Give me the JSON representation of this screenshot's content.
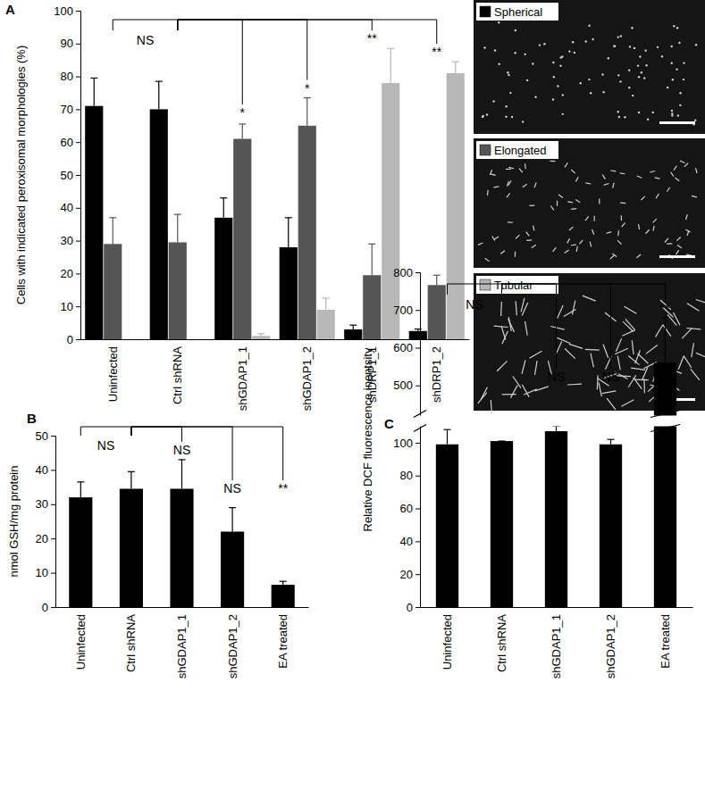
{
  "chart_data": [
    {
      "type": "bar",
      "panel_label": "A",
      "y_label": "Cells with indicated peroxisomal morphologies (%)",
      "categories": [
        "Uninfected",
        "Ctrl shRNA",
        "shGDAP1_1",
        "shGDAP1_2",
        "shDRP1_1",
        "shDRP1_2"
      ],
      "series": [
        {
          "name": "Spherical",
          "color": "#000000",
          "values": [
            71,
            70,
            37,
            28,
            3,
            2.5
          ],
          "errors": [
            8.5,
            8.5,
            6,
            9,
            1.3,
            0.6
          ]
        },
        {
          "name": "Elongated",
          "color": "#555555",
          "values": [
            29,
            29.5,
            61,
            65,
            19.5,
            16.5
          ],
          "errors": [
            8,
            8.5,
            4.5,
            8.5,
            9.5,
            3
          ]
        },
        {
          "name": "Tubular",
          "color": "#b8b8b8",
          "values": [
            null,
            null,
            1,
            9,
            78,
            81
          ],
          "errors": [
            null,
            null,
            0.7,
            3.5,
            10.5,
            3.5
          ]
        }
      ],
      "ylim": [
        0,
        100
      ],
      "yticks": [
        0,
        10,
        20,
        30,
        40,
        50,
        60,
        70,
        80,
        90,
        100
      ],
      "legend": "top-right",
      "annotations": [
        {
          "text": "NS",
          "categories": [
            "Uninfected",
            "Ctrl shRNA"
          ]
        },
        {
          "text": "*",
          "categories": [
            "Ctrl shRNA",
            "shGDAP1_1"
          ]
        },
        {
          "text": "*",
          "categories": [
            "Ctrl shRNA",
            "shGDAP1_2"
          ]
        },
        {
          "text": "**",
          "categories": [
            "Ctrl shRNA",
            "shDRP1_1"
          ]
        },
        {
          "text": "**",
          "categories": [
            "Ctrl shRNA",
            "shDRP1_2"
          ]
        }
      ]
    },
    {
      "type": "bar",
      "panel_label": "B",
      "y_label": "nmol GSH/mg protein",
      "categories": [
        "Uninfected",
        "Ctrl shRNA",
        "shGDAP1_1",
        "shGDAP1_2",
        "EA treated"
      ],
      "values": [
        32,
        34.5,
        34.5,
        22,
        6.5
      ],
      "errors": [
        4.5,
        5,
        8.5,
        7,
        1
      ],
      "color": "#000000",
      "ylim": [
        0,
        50
      ],
      "yticks": [
        0,
        10,
        20,
        30,
        40,
        50
      ],
      "annotations": [
        {
          "text": "NS",
          "categories": [
            "Uninfected",
            "Ctrl shRNA"
          ]
        },
        {
          "text": "NS",
          "categories": [
            "Ctrl shRNA",
            "shGDAP1_1"
          ]
        },
        {
          "text": "NS",
          "categories": [
            "Ctrl shRNA",
            "shGDAP1_2"
          ]
        },
        {
          "text": "**",
          "categories": [
            "Ctrl shRNA",
            "EA treated"
          ]
        }
      ]
    },
    {
      "type": "bar",
      "panel_label": "C",
      "y_label": "Relative DCF fluorescence inentsity",
      "categories": [
        "Uninfected",
        "Ctrl shRNA",
        "shGDAP1_1",
        "shGDAP1_2",
        "EA treated"
      ],
      "values": [
        99,
        101,
        107,
        99,
        560
      ],
      "errors": [
        9,
        0,
        8,
        3,
        120
      ],
      "color": "#000000",
      "ylim": [
        0,
        800
      ],
      "ybreak": [
        110,
        420
      ],
      "yticks": [
        0,
        20,
        40,
        60,
        80,
        100,
        500,
        600,
        700,
        800
      ],
      "annotations": [
        {
          "text": "NS",
          "categories": [
            "Uninfected",
            "Ctrl shRNA"
          ]
        },
        {
          "text": "NS",
          "categories": [
            "Ctrl shRNA",
            "shGDAP1_1"
          ]
        },
        {
          "text": "NS",
          "categories": [
            "Ctrl shRNA",
            "shGDAP1_2"
          ]
        },
        {
          "text": "**",
          "categories": [
            "Ctrl shRNA",
            "EA treated"
          ]
        }
      ]
    }
  ]
}
